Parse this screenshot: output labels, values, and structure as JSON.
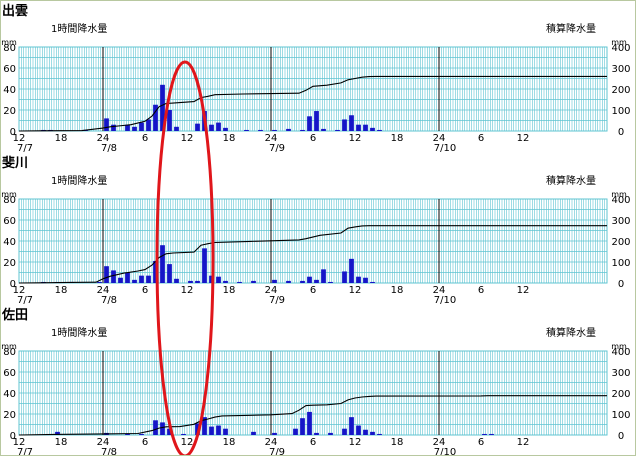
{
  "colors": {
    "grid": "#5fc4d2",
    "bar": "#1515c8",
    "line": "#000000",
    "day_divider": "#000000",
    "highlight": "#e0161b",
    "frame_bg": "#e6efc9"
  },
  "chart_data": [
    {
      "type": "bar",
      "title": "出雲",
      "ylabel": "1時間降水量",
      "y2label": "積算降水量",
      "yunit": "mm",
      "y2unit": "mm",
      "ylim": [
        0,
        80
      ],
      "y2lim": [
        0,
        400
      ],
      "yticks": [
        "0",
        "20",
        "40",
        "60",
        "80"
      ],
      "y2ticks": [
        "0",
        "100",
        "200",
        "300",
        "400"
      ],
      "x_range_hours": [
        0,
        84
      ],
      "xticks": [
        {
          "hour": 0,
          "label": "12"
        },
        {
          "hour": 6,
          "label": "18"
        },
        {
          "hour": 12,
          "label": "24"
        },
        {
          "hour": 18,
          "label": "6"
        },
        {
          "hour": 24,
          "label": "12"
        },
        {
          "hour": 30,
          "label": "18"
        },
        {
          "hour": 36,
          "label": "24"
        },
        {
          "hour": 42,
          "label": "6"
        },
        {
          "hour": 48,
          "label": "12"
        },
        {
          "hour": 54,
          "label": "18"
        },
        {
          "hour": 60,
          "label": "24"
        },
        {
          "hour": 66,
          "label": "6"
        },
        {
          "hour": 72,
          "label": "12"
        }
      ],
      "date_labels": [
        {
          "hour": 0,
          "label": "7/7"
        },
        {
          "hour": 12,
          "label": "7/8"
        },
        {
          "hour": 36,
          "label": "7/9"
        },
        {
          "hour": 60,
          "label": "7/10"
        }
      ],
      "hourly": [
        [
          3,
          1
        ],
        [
          4,
          1
        ],
        [
          9,
          1
        ],
        [
          12,
          12
        ],
        [
          13,
          6
        ],
        [
          15,
          6
        ],
        [
          16,
          4
        ],
        [
          17,
          8
        ],
        [
          18,
          11
        ],
        [
          19,
          25
        ],
        [
          20,
          44
        ],
        [
          21,
          20
        ],
        [
          22,
          4
        ],
        [
          25,
          7
        ],
        [
          26,
          19
        ],
        [
          27,
          6
        ],
        [
          28,
          8
        ],
        [
          29,
          3
        ],
        [
          32,
          1
        ],
        [
          34,
          1
        ],
        [
          36,
          1
        ],
        [
          38,
          2
        ],
        [
          40,
          1
        ],
        [
          41,
          14
        ],
        [
          42,
          19
        ],
        [
          43,
          2
        ],
        [
          45,
          1
        ],
        [
          46,
          11
        ],
        [
          47,
          15
        ],
        [
          48,
          6
        ],
        [
          49,
          6
        ],
        [
          50,
          3
        ],
        [
          51,
          1
        ]
      ],
      "accumulated": [
        [
          0,
          0
        ],
        [
          3,
          1
        ],
        [
          9,
          2
        ],
        [
          12,
          14
        ],
        [
          13,
          20
        ],
        [
          16,
          30
        ],
        [
          18,
          46
        ],
        [
          19,
          71
        ],
        [
          20,
          115
        ],
        [
          21,
          131
        ],
        [
          22,
          133
        ],
        [
          25,
          140
        ],
        [
          26,
          159
        ],
        [
          27,
          165
        ],
        [
          28,
          173
        ],
        [
          32,
          176
        ],
        [
          40,
          180
        ],
        [
          41,
          194
        ],
        [
          42,
          213
        ],
        [
          44,
          218
        ],
        [
          46,
          229
        ],
        [
          47,
          244
        ],
        [
          48,
          250
        ],
        [
          49,
          256
        ],
        [
          50,
          259
        ],
        [
          51,
          260
        ],
        [
          84,
          260
        ]
      ]
    },
    {
      "type": "bar",
      "title": "斐川",
      "ylabel": "1時間降水量",
      "y2label": "積算降水量",
      "yunit": "mm",
      "y2unit": "mm",
      "ylim": [
        0,
        80
      ],
      "y2lim": [
        0,
        400
      ],
      "yticks": [
        "0",
        "20",
        "40",
        "60",
        "80"
      ],
      "y2ticks": [
        "0",
        "100",
        "200",
        "300",
        "400"
      ],
      "x_range_hours": [
        0,
        84
      ],
      "xticks": [
        {
          "hour": 0,
          "label": "12"
        },
        {
          "hour": 6,
          "label": "18"
        },
        {
          "hour": 12,
          "label": "24"
        },
        {
          "hour": 18,
          "label": "6"
        },
        {
          "hour": 24,
          "label": "12"
        },
        {
          "hour": 30,
          "label": "18"
        },
        {
          "hour": 36,
          "label": "24"
        },
        {
          "hour": 42,
          "label": "6"
        },
        {
          "hour": 48,
          "label": "12"
        },
        {
          "hour": 54,
          "label": "18"
        },
        {
          "hour": 60,
          "label": "24"
        },
        {
          "hour": 66,
          "label": "6"
        },
        {
          "hour": 72,
          "label": "12"
        }
      ],
      "date_labels": [
        {
          "hour": 0,
          "label": "7/7"
        },
        {
          "hour": 12,
          "label": "7/8"
        },
        {
          "hour": 36,
          "label": "7/9"
        },
        {
          "hour": 60,
          "label": "7/10"
        }
      ],
      "hourly": [
        [
          3,
          1
        ],
        [
          5,
          1
        ],
        [
          7,
          1
        ],
        [
          11,
          1
        ],
        [
          12,
          16
        ],
        [
          13,
          12
        ],
        [
          14,
          5
        ],
        [
          15,
          10
        ],
        [
          16,
          3
        ],
        [
          17,
          7
        ],
        [
          18,
          7
        ],
        [
          19,
          21
        ],
        [
          20,
          36
        ],
        [
          21,
          18
        ],
        [
          22,
          4
        ],
        [
          24,
          2
        ],
        [
          25,
          2
        ],
        [
          26,
          33
        ],
        [
          27,
          7
        ],
        [
          28,
          6
        ],
        [
          29,
          2
        ],
        [
          31,
          1
        ],
        [
          33,
          2
        ],
        [
          36,
          3
        ],
        [
          38,
          2
        ],
        [
          40,
          2
        ],
        [
          41,
          6
        ],
        [
          42,
          3
        ],
        [
          43,
          13
        ],
        [
          44,
          1
        ],
        [
          46,
          11
        ],
        [
          47,
          23
        ],
        [
          48,
          6
        ],
        [
          49,
          5
        ],
        [
          50,
          1
        ]
      ],
      "accumulated": [
        [
          0,
          0
        ],
        [
          3,
          1
        ],
        [
          7,
          3
        ],
        [
          11,
          4
        ],
        [
          12,
          20
        ],
        [
          13,
          32
        ],
        [
          15,
          47
        ],
        [
          17,
          57
        ],
        [
          18,
          64
        ],
        [
          19,
          85
        ],
        [
          20,
          121
        ],
        [
          21,
          139
        ],
        [
          22,
          143
        ],
        [
          25,
          147
        ],
        [
          26,
          180
        ],
        [
          27,
          187
        ],
        [
          28,
          193
        ],
        [
          33,
          198
        ],
        [
          36,
          201
        ],
        [
          40,
          205
        ],
        [
          41,
          211
        ],
        [
          43,
          227
        ],
        [
          46,
          238
        ],
        [
          47,
          261
        ],
        [
          48,
          267
        ],
        [
          49,
          272
        ],
        [
          50,
          273
        ],
        [
          84,
          273
        ]
      ]
    },
    {
      "type": "bar",
      "title": "佐田",
      "ylabel": "1時間降水量",
      "y2label": "積算降水量",
      "yunit": "mm",
      "y2unit": "mm",
      "ylim": [
        0,
        80
      ],
      "y2lim": [
        0,
        400
      ],
      "yticks": [
        "0",
        "20",
        "40",
        "60",
        "80"
      ],
      "y2ticks": [
        "0",
        "100",
        "200",
        "300",
        "400"
      ],
      "x_range_hours": [
        0,
        84
      ],
      "xticks": [
        {
          "hour": 0,
          "label": "12"
        },
        {
          "hour": 6,
          "label": "18"
        },
        {
          "hour": 12,
          "label": "24"
        },
        {
          "hour": 18,
          "label": "6"
        },
        {
          "hour": 24,
          "label": "12"
        },
        {
          "hour": 30,
          "label": "18"
        },
        {
          "hour": 36,
          "label": "24"
        },
        {
          "hour": 42,
          "label": "6"
        },
        {
          "hour": 48,
          "label": "12"
        },
        {
          "hour": 54,
          "label": "18"
        },
        {
          "hour": 60,
          "label": "24"
        },
        {
          "hour": 66,
          "label": "6"
        },
        {
          "hour": 72,
          "label": "12"
        }
      ],
      "date_labels": [
        {
          "hour": 0,
          "label": "7/7"
        },
        {
          "hour": 12,
          "label": "7/8"
        },
        {
          "hour": 36,
          "label": "7/9"
        },
        {
          "hour": 60,
          "label": "7/10"
        }
      ],
      "hourly": [
        [
          5,
          3
        ],
        [
          12,
          2
        ],
        [
          15,
          1
        ],
        [
          17,
          1
        ],
        [
          19,
          14
        ],
        [
          20,
          12
        ],
        [
          21,
          6
        ],
        [
          23,
          1
        ],
        [
          25,
          11
        ],
        [
          26,
          17
        ],
        [
          27,
          8
        ],
        [
          28,
          9
        ],
        [
          29,
          6
        ],
        [
          33,
          3
        ],
        [
          36,
          2
        ],
        [
          39,
          6
        ],
        [
          40,
          16
        ],
        [
          41,
          22
        ],
        [
          42,
          2
        ],
        [
          44,
          2
        ],
        [
          46,
          6
        ],
        [
          47,
          17
        ],
        [
          48,
          9
        ],
        [
          49,
          5
        ],
        [
          50,
          3
        ],
        [
          51,
          1
        ],
        [
          66,
          1
        ],
        [
          67,
          1
        ]
      ],
      "accumulated": [
        [
          0,
          0
        ],
        [
          5,
          3
        ],
        [
          12,
          5
        ],
        [
          17,
          7
        ],
        [
          19,
          21
        ],
        [
          20,
          33
        ],
        [
          21,
          39
        ],
        [
          23,
          40
        ],
        [
          25,
          51
        ],
        [
          26,
          68
        ],
        [
          27,
          76
        ],
        [
          28,
          85
        ],
        [
          29,
          91
        ],
        [
          33,
          94
        ],
        [
          36,
          96
        ],
        [
          39,
          102
        ],
        [
          40,
          118
        ],
        [
          41,
          140
        ],
        [
          42,
          142
        ],
        [
          44,
          144
        ],
        [
          46,
          150
        ],
        [
          47,
          167
        ],
        [
          48,
          176
        ],
        [
          49,
          181
        ],
        [
          50,
          184
        ],
        [
          51,
          185
        ],
        [
          66,
          186
        ],
        [
          67,
          187
        ],
        [
          84,
          187
        ]
      ]
    }
  ]
}
